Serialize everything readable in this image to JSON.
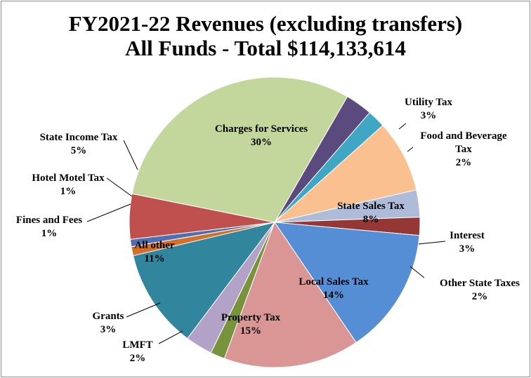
{
  "chart_data": {
    "type": "pie",
    "title_line1": "FY2021-22 Revenues (excluding transfers)",
    "title_line2": "All Funds - Total  $114,133,614",
    "start_angle_deg": -60,
    "slices": [
      {
        "name": "Utility  Tax",
        "label_lines": [
          "Utility  Tax"
        ],
        "pct_label": "3%",
        "value": 3,
        "color": "#5b4a7e"
      },
      {
        "name": "Food and Beverage Tax",
        "label_lines": [
          "Food and Beverage",
          "Tax"
        ],
        "pct_label": "2%",
        "value": 2,
        "color": "#3fa6c3"
      },
      {
        "name": "State Sales Tax",
        "label_lines": [
          "State Sales Tax"
        ],
        "pct_label": "8%",
        "value": 8,
        "color": "#fac090"
      },
      {
        "name": "Interest",
        "label_lines": [
          "Interest"
        ],
        "pct_label": "3%",
        "value": 3,
        "color": "#aebcd9"
      },
      {
        "name": "Other State Taxes",
        "label_lines": [
          "Other State Taxes"
        ],
        "pct_label": "2%",
        "value": 2,
        "color": "#953735"
      },
      {
        "name": "Local Sales Tax",
        "label_lines": [
          "Local Sales Tax"
        ],
        "pct_label": "14%",
        "value": 14,
        "color": "#558ed5"
      },
      {
        "name": "Property Tax",
        "label_lines": [
          "Property Tax"
        ],
        "pct_label": "15%",
        "value": 15,
        "color": "#d99694"
      },
      {
        "name": "LMFT",
        "label_lines": [
          "LMFT"
        ],
        "pct_label": "2%",
        "value": 1.6,
        "color": "#77933c"
      },
      {
        "name": "Grants",
        "label_lines": [
          "Grants"
        ],
        "pct_label": "3%",
        "value": 3,
        "color": "#b3a2c7"
      },
      {
        "name": "All  other",
        "label_lines": [
          "All  other"
        ],
        "pct_label": "11%",
        "value": 11,
        "color": "#31859c"
      },
      {
        "name": "Fines and Fees",
        "label_lines": [
          "Fines and Fees"
        ],
        "pct_label": "1%",
        "value": 1,
        "color": "#d46f2b"
      },
      {
        "name": "Hotel Motel Tax",
        "label_lines": [
          "Hotel Motel Tax"
        ],
        "pct_label": "1%",
        "value": 0.8,
        "color": "#4f6fb0"
      },
      {
        "name": "State Income Tax",
        "label_lines": [
          "State Income Tax"
        ],
        "pct_label": "5%",
        "value": 5,
        "color": "#c0504d"
      },
      {
        "name": "Charges for Services",
        "label_lines": [
          "Charges for Services"
        ],
        "pct_label": "30%",
        "value": 30,
        "color": "#c3d69b"
      }
    ]
  }
}
